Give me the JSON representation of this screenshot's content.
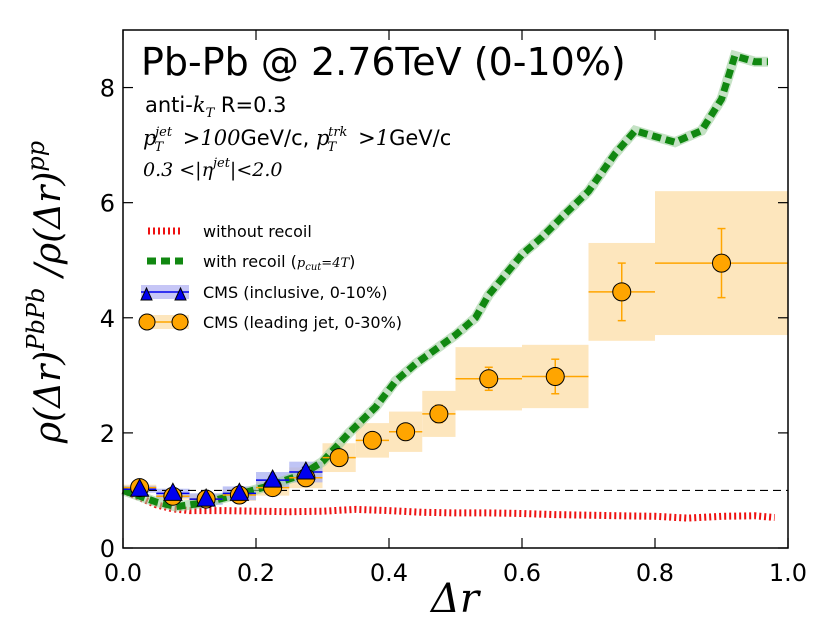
{
  "chart_data": {
    "type": "line",
    "title": "Pb-Pb @ 2.76TeV (0-10%)",
    "annotations": {
      "line1": "anti-kT R=0.3",
      "line2": "pT^jet >100GeV/c, pT^trk >1GeV/c",
      "line3": "0.3 <|η^jet|<2.0"
    },
    "xlabel": "Δr",
    "ylabel": "ρ(Δr)^PbPb / ρ(Δr)^pp",
    "xlim": [
      0,
      1
    ],
    "ylim": [
      0,
      9
    ],
    "xticks": [
      {
        "v": 0.0,
        "label": "0.0"
      },
      {
        "v": 0.2,
        "label": "0.2"
      },
      {
        "v": 0.4,
        "label": "0.4"
      },
      {
        "v": 0.6,
        "label": "0.6"
      },
      {
        "v": 0.8,
        "label": "0.8"
      },
      {
        "v": 1.0,
        "label": "1.0"
      }
    ],
    "yticks": [
      {
        "v": 0,
        "label": "0"
      },
      {
        "v": 2,
        "label": "2"
      },
      {
        "v": 4,
        "label": "4"
      },
      {
        "v": 6,
        "label": "6"
      },
      {
        "v": 8,
        "label": "8"
      }
    ],
    "reference_line": 1.0,
    "series": [
      {
        "name": "without recoil",
        "style": "red-dotted",
        "color": "#ee1111",
        "x": [
          0.0,
          0.05,
          0.075,
          0.1,
          0.15,
          0.2,
          0.25,
          0.3,
          0.35,
          0.4,
          0.45,
          0.5,
          0.55,
          0.6,
          0.65,
          0.7,
          0.75,
          0.8,
          0.85,
          0.9,
          0.95,
          0.98
        ],
        "y": [
          1.0,
          0.75,
          0.68,
          0.65,
          0.65,
          0.64,
          0.63,
          0.64,
          0.67,
          0.65,
          0.62,
          0.61,
          0.61,
          0.6,
          0.58,
          0.57,
          0.56,
          0.55,
          0.52,
          0.55,
          0.56,
          0.53
        ]
      },
      {
        "name": "with recoil (p_cut=4T)",
        "style": "green-dashed",
        "color": "#118811",
        "x": [
          0.0,
          0.05,
          0.08,
          0.12,
          0.17,
          0.22,
          0.27,
          0.3,
          0.34,
          0.38,
          0.41,
          0.44,
          0.47,
          0.5,
          0.53,
          0.55,
          0.6,
          0.63,
          0.66,
          0.7,
          0.74,
          0.77,
          0.8,
          0.83,
          0.87,
          0.9,
          0.92,
          0.95,
          0.97
        ],
        "y": [
          1.0,
          0.8,
          0.72,
          0.78,
          0.92,
          1.08,
          1.28,
          1.5,
          2.0,
          2.45,
          2.9,
          3.2,
          3.45,
          3.7,
          4.0,
          4.4,
          5.1,
          5.4,
          5.75,
          6.2,
          6.85,
          7.25,
          7.15,
          7.05,
          7.25,
          7.8,
          8.55,
          8.45,
          8.45
        ]
      },
      {
        "name": "CMS (inclusive, 0-10%)",
        "style": "blue-triangles",
        "color": "#0000ee",
        "points": [
          {
            "x": 0.025,
            "y": 1.02,
            "xerr": 0.025,
            "yerr": 0.03,
            "sys": 0.06
          },
          {
            "x": 0.075,
            "y": 0.95,
            "xerr": 0.025,
            "yerr": 0.03,
            "sys": 0.08
          },
          {
            "x": 0.125,
            "y": 0.85,
            "xerr": 0.025,
            "yerr": 0.04,
            "sys": 0.1
          },
          {
            "x": 0.175,
            "y": 0.95,
            "xerr": 0.025,
            "yerr": 0.05,
            "sys": 0.12
          },
          {
            "x": 0.225,
            "y": 1.18,
            "xerr": 0.025,
            "yerr": 0.06,
            "sys": 0.14
          },
          {
            "x": 0.275,
            "y": 1.32,
            "xerr": 0.025,
            "yerr": 0.08,
            "sys": 0.18
          }
        ]
      },
      {
        "name": "CMS (leading jet, 0-30%)",
        "style": "orange-circles",
        "color": "#ffa500",
        "points": [
          {
            "x": 0.025,
            "y": 1.05,
            "xerr": 0.025,
            "yerr": 0.02,
            "sys": 0.05
          },
          {
            "x": 0.075,
            "y": 0.9,
            "xerr": 0.025,
            "yerr": 0.03,
            "sys": 0.06
          },
          {
            "x": 0.125,
            "y": 0.85,
            "xerr": 0.025,
            "yerr": 0.04,
            "sys": 0.08
          },
          {
            "x": 0.175,
            "y": 0.92,
            "xerr": 0.025,
            "yerr": 0.05,
            "sys": 0.1
          },
          {
            "x": 0.225,
            "y": 1.05,
            "xerr": 0.025,
            "yerr": 0.06,
            "sys": 0.14
          },
          {
            "x": 0.275,
            "y": 1.22,
            "xerr": 0.025,
            "yerr": 0.08,
            "sys": 0.18
          },
          {
            "x": 0.325,
            "y": 1.57,
            "xerr": 0.025,
            "yerr": 0.09,
            "sys": 0.25
          },
          {
            "x": 0.375,
            "y": 1.87,
            "xerr": 0.025,
            "yerr": 0.1,
            "sys": 0.3
          },
          {
            "x": 0.425,
            "y": 2.02,
            "xerr": 0.025,
            "yerr": 0.12,
            "sys": 0.35
          },
          {
            "x": 0.475,
            "y": 2.33,
            "xerr": 0.025,
            "yerr": 0.15,
            "sys": 0.4
          },
          {
            "x": 0.55,
            "y": 2.94,
            "xerr": 0.05,
            "yerr": 0.2,
            "sys": 0.55
          },
          {
            "x": 0.65,
            "y": 2.98,
            "xerr": 0.05,
            "yerr": 0.3,
            "sys": 0.55
          },
          {
            "x": 0.75,
            "y": 4.45,
            "xerr": 0.05,
            "yerr": 0.5,
            "sys": 0.85
          },
          {
            "x": 0.9,
            "y": 4.95,
            "xerr": 0.1,
            "yerr": 0.6,
            "sys": 1.25
          }
        ]
      }
    ],
    "legend_position": "middle-left"
  }
}
